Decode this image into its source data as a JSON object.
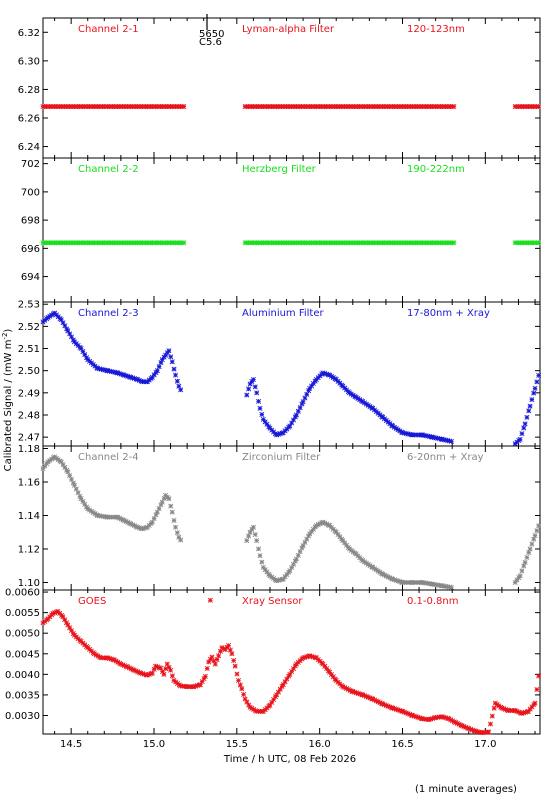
{
  "figure": {
    "ylabel": "Calibrated Signal / (mW m",
    "ylabel_sup": "-2",
    "ylabel_close": ")",
    "xlabel": "Time / h UTC, 08 Feb 2026",
    "footnote": "(1 minute averages)",
    "marker_top": "5650",
    "marker_bottom": "C5.6",
    "marker_hour": 15.32
  },
  "colors": {
    "red": "#e8141c",
    "green": "#18e01c",
    "blue": "#1818d8",
    "grey": "#888888"
  },
  "chart_data": [
    {
      "type": "scatter",
      "title": "Channel 2-1",
      "filter": "Lyman-alpha Filter",
      "band": "120-123nm",
      "color": "#e8141c",
      "xlim": [
        14.33,
        17.33
      ],
      "ylim": [
        6.232,
        6.33
      ],
      "yticks": [
        6.24,
        6.26,
        6.28,
        6.3,
        6.32
      ],
      "ytick_labels": [
        "6.24",
        "6.26",
        "6.28",
        "6.30",
        "6.32"
      ],
      "x": [
        14.33,
        15.18,
        15.55,
        16.82,
        17.18,
        17.33
      ],
      "y": [
        6.268,
        6.268,
        6.268,
        6.268,
        6.268,
        6.268
      ],
      "gaps_after": [
        1,
        3
      ]
    },
    {
      "type": "scatter",
      "title": "Channel 2-2",
      "filter": "Herzberg Filter",
      "band": "190-222nm",
      "color": "#18e01c",
      "xlim": [
        14.33,
        17.33
      ],
      "ylim": [
        692.2,
        702.4
      ],
      "yticks": [
        694,
        696,
        698,
        700,
        702
      ],
      "ytick_labels": [
        "694",
        "696",
        "698",
        "700",
        "702"
      ],
      "x": [
        14.33,
        15.18,
        15.55,
        16.82,
        17.18,
        17.33
      ],
      "y": [
        696.4,
        696.4,
        696.4,
        696.4,
        696.4,
        696.4
      ],
      "gaps_after": [
        1,
        3
      ]
    },
    {
      "type": "scatter",
      "title": "Channel 2-3",
      "filter": "Aluminium Filter",
      "band": "17-80nm + Xray",
      "color": "#1818d8",
      "xlim": [
        14.33,
        17.33
      ],
      "ylim": [
        2.466,
        2.531
      ],
      "yticks": [
        2.47,
        2.48,
        2.49,
        2.5,
        2.51,
        2.52,
        2.53
      ],
      "ytick_labels": [
        "2.47",
        "2.48",
        "2.49",
        "2.50",
        "2.51",
        "2.52",
        "2.53"
      ],
      "x": [
        14.33,
        14.36,
        14.4,
        14.44,
        14.48,
        14.52,
        14.56,
        14.6,
        14.66,
        14.72,
        14.78,
        14.82,
        14.86,
        14.9,
        14.93,
        14.96,
        14.99,
        15.02,
        15.05,
        15.07,
        15.09,
        15.11,
        15.13,
        15.15,
        15.17,
        15.56,
        15.58,
        15.6,
        15.62,
        15.64,
        15.66,
        15.7,
        15.74,
        15.78,
        15.82,
        15.86,
        15.9,
        15.94,
        15.98,
        16.02,
        16.06,
        16.1,
        16.14,
        16.18,
        16.22,
        16.26,
        16.32,
        16.38,
        16.44,
        16.5,
        16.56,
        16.62,
        16.68,
        16.74,
        16.8,
        17.18,
        17.21,
        17.24,
        17.27,
        17.3,
        17.33
      ],
      "y": [
        2.522,
        2.524,
        2.526,
        2.523,
        2.518,
        2.513,
        2.51,
        2.505,
        2.501,
        2.5,
        2.499,
        2.498,
        2.497,
        2.496,
        2.495,
        2.495,
        2.497,
        2.5,
        2.505,
        2.507,
        2.509,
        2.504,
        2.498,
        2.493,
        2.49,
        2.489,
        2.494,
        2.496,
        2.49,
        2.483,
        2.478,
        2.474,
        2.471,
        2.472,
        2.475,
        2.48,
        2.486,
        2.492,
        2.496,
        2.499,
        2.498,
        2.496,
        2.493,
        2.49,
        2.488,
        2.486,
        2.483,
        2.479,
        2.475,
        2.472,
        2.471,
        2.471,
        2.47,
        2.469,
        2.468,
        2.467,
        2.469,
        2.476,
        2.484,
        2.492,
        2.5
      ],
      "gaps_after": [
        24,
        54
      ]
    },
    {
      "type": "scatter",
      "title": "Channel 2-4",
      "filter": "Zirconium Filter",
      "band": "6-20nm + Xray",
      "color": "#888888",
      "xlim": [
        14.33,
        17.33
      ],
      "ylim": [
        1.0955,
        1.1815
      ],
      "yticks": [
        1.1,
        1.12,
        1.14,
        1.16,
        1.18
      ],
      "ytick_labels": [
        "1.10",
        "1.12",
        "1.14",
        "1.16",
        "1.18"
      ],
      "x": [
        14.33,
        14.36,
        14.4,
        14.44,
        14.48,
        14.52,
        14.56,
        14.6,
        14.66,
        14.72,
        14.78,
        14.82,
        14.86,
        14.9,
        14.93,
        14.96,
        14.99,
        15.02,
        15.05,
        15.07,
        15.09,
        15.11,
        15.13,
        15.15,
        15.17,
        15.56,
        15.58,
        15.6,
        15.62,
        15.64,
        15.66,
        15.7,
        15.74,
        15.78,
        15.82,
        15.86,
        15.9,
        15.94,
        15.98,
        16.02,
        16.06,
        16.1,
        16.14,
        16.18,
        16.22,
        16.26,
        16.32,
        16.38,
        16.44,
        16.5,
        16.56,
        16.62,
        16.68,
        16.74,
        16.8,
        17.18,
        17.21,
        17.24,
        17.27,
        17.3,
        17.33
      ],
      "y": [
        1.168,
        1.172,
        1.175,
        1.172,
        1.166,
        1.158,
        1.15,
        1.144,
        1.14,
        1.139,
        1.139,
        1.137,
        1.135,
        1.133,
        1.132,
        1.133,
        1.136,
        1.142,
        1.148,
        1.152,
        1.15,
        1.142,
        1.133,
        1.127,
        1.124,
        1.125,
        1.13,
        1.133,
        1.125,
        1.116,
        1.109,
        1.104,
        1.101,
        1.102,
        1.107,
        1.114,
        1.122,
        1.129,
        1.134,
        1.136,
        1.134,
        1.13,
        1.125,
        1.12,
        1.117,
        1.113,
        1.109,
        1.105,
        1.102,
        1.1,
        1.1,
        1.1,
        1.099,
        1.098,
        1.097,
        1.1,
        1.104,
        1.112,
        1.12,
        1.128,
        1.136
      ],
      "gaps_after": [
        24,
        54
      ]
    },
    {
      "type": "scatter",
      "title": "GOES",
      "filter": "Xray Sensor",
      "band": "0.1-0.8nm",
      "color": "#e8141c",
      "xlim": [
        14.33,
        17.33
      ],
      "ylim": [
        0.00255,
        0.00605
      ],
      "yticks": [
        0.003,
        0.0035,
        0.004,
        0.0045,
        0.005,
        0.0055,
        0.006
      ],
      "ytick_labels": [
        "0.0030",
        "0.0035",
        "0.0040",
        "0.0045",
        "0.0050",
        "0.0055",
        "0.0060"
      ],
      "x": [
        14.33,
        14.36,
        14.39,
        14.42,
        14.45,
        14.48,
        14.52,
        14.56,
        14.6,
        14.64,
        14.68,
        14.72,
        14.76,
        14.8,
        14.84,
        14.88,
        14.92,
        14.96,
        14.99,
        15.01,
        15.04,
        15.06,
        15.08,
        15.1,
        15.12,
        15.16,
        15.2,
        15.24,
        15.28,
        15.31,
        15.33,
        15.35,
        15.37,
        15.39,
        15.41,
        15.43,
        15.45,
        15.47,
        15.49,
        15.51,
        15.53,
        15.55,
        15.58,
        15.62,
        15.66,
        15.7,
        15.74,
        15.78,
        15.82,
        15.86,
        15.9,
        15.94,
        15.98,
        16.02,
        16.06,
        16.1,
        16.14,
        16.2,
        16.26,
        16.32,
        16.38,
        16.44,
        16.5,
        16.56,
        16.62,
        16.66,
        16.7,
        16.74,
        16.78,
        16.82,
        16.86,
        16.9,
        16.94,
        16.98,
        17.02,
        17.06,
        17.1,
        17.14,
        17.18,
        17.22,
        17.26,
        17.3,
        17.33
      ],
      "y": [
        0.00525,
        0.00535,
        0.00548,
        0.00553,
        0.0054,
        0.0052,
        0.00495,
        0.0048,
        0.00465,
        0.0045,
        0.0044,
        0.0044,
        0.00435,
        0.00425,
        0.00418,
        0.0041,
        0.00403,
        0.00398,
        0.00403,
        0.0042,
        0.00415,
        0.004,
        0.00425,
        0.0041,
        0.00385,
        0.00372,
        0.0037,
        0.0037,
        0.00375,
        0.00395,
        0.0043,
        0.00442,
        0.00425,
        0.00445,
        0.00465,
        0.0046,
        0.0047,
        0.0045,
        0.0042,
        0.00385,
        0.00365,
        0.0034,
        0.0032,
        0.0031,
        0.0031,
        0.00325,
        0.0035,
        0.00375,
        0.004,
        0.00425,
        0.0044,
        0.00445,
        0.0044,
        0.00425,
        0.00405,
        0.00385,
        0.0037,
        0.00358,
        0.0035,
        0.0034,
        0.00328,
        0.00318,
        0.0031,
        0.003,
        0.00292,
        0.0029,
        0.00295,
        0.00297,
        0.00292,
        0.00283,
        0.00275,
        0.00268,
        0.00262,
        0.00258,
        0.0026,
        0.0033,
        0.00318,
        0.00312,
        0.00312,
        0.00305,
        0.0031,
        0.0033,
        0.0042
      ],
      "outlier_x": 15.34,
      "outlier_y": 0.0058
    }
  ]
}
